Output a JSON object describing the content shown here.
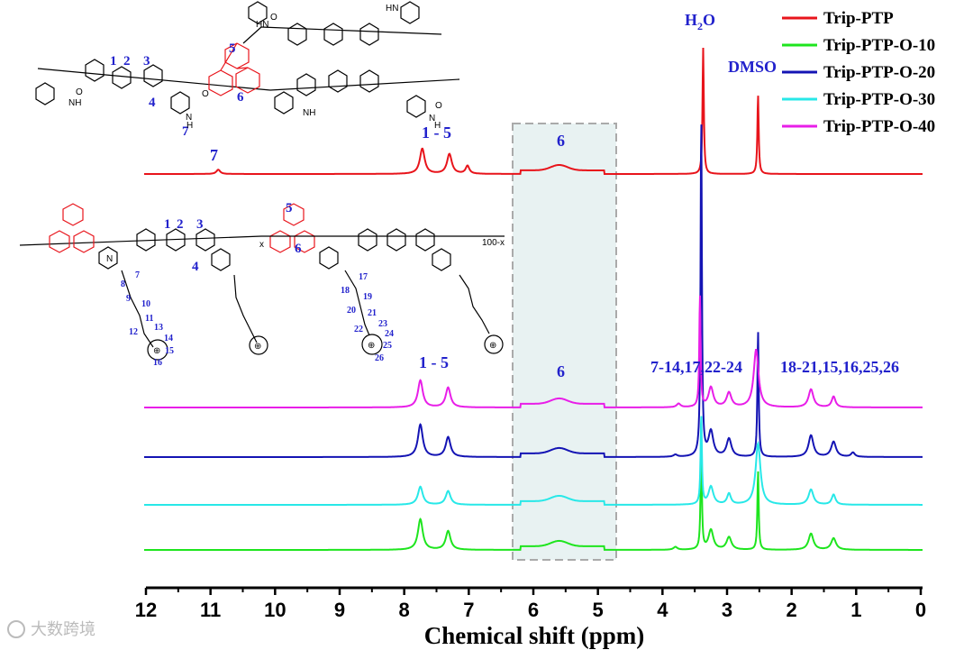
{
  "chart_data": {
    "type": "line",
    "xlabel": "Chemical shift (ppm)",
    "xlim": [
      12,
      0
    ],
    "x_reversed": true,
    "x_ticks": [
      "12",
      "11",
      "10",
      "9",
      "8",
      "7",
      "6",
      "5",
      "4",
      "3",
      "2",
      "1",
      "0"
    ],
    "legend_position": "top-right",
    "grid": false,
    "series": [
      {
        "name": "Trip-PTP",
        "color": "#e8141b",
        "peaks": [
          [
            10.88,
            0.12
          ],
          [
            7.72,
            0.7
          ],
          [
            7.3,
            0.55
          ],
          [
            7.02,
            0.22
          ],
          [
            3.37,
            3.5
          ],
          [
            2.52,
            2.2
          ]
        ]
      },
      {
        "name": "Trip-PTP-O-10",
        "color": "#1ee51e",
        "peaks": [
          [
            7.75,
            0.85
          ],
          [
            7.32,
            0.52
          ],
          [
            3.8,
            0.08
          ],
          [
            3.4,
            2.9
          ],
          [
            3.25,
            0.55
          ],
          [
            2.97,
            0.35
          ],
          [
            2.52,
            2.2
          ],
          [
            1.7,
            0.45
          ],
          [
            1.35,
            0.32
          ]
        ]
      },
      {
        "name": "Trip-PTP-O-20",
        "color": "#1414b4",
        "peaks": [
          [
            7.75,
            0.9
          ],
          [
            7.32,
            0.55
          ],
          [
            3.8,
            0.06
          ],
          [
            3.4,
            9.5
          ],
          [
            3.25,
            0.7
          ],
          [
            2.97,
            0.5
          ],
          [
            2.52,
            3.5
          ],
          [
            1.7,
            0.6
          ],
          [
            1.35,
            0.42
          ],
          [
            1.05,
            0.12
          ]
        ]
      },
      {
        "name": "Trip-PTP-O-30",
        "color": "#28e8e8",
        "peaks": [
          [
            7.75,
            0.5
          ],
          [
            7.32,
            0.38
          ],
          [
            3.4,
            2.5
          ],
          [
            3.25,
            0.5
          ],
          [
            2.97,
            0.3
          ],
          [
            2.52,
            1.7
          ],
          [
            1.7,
            0.42
          ],
          [
            1.35,
            0.28
          ]
        ]
      },
      {
        "name": "Trip-PTP-O-40",
        "color": "#e81ee8",
        "peaks": [
          [
            7.75,
            0.75
          ],
          [
            7.32,
            0.55
          ],
          [
            3.75,
            0.1
          ],
          [
            3.42,
            3.1
          ],
          [
            3.25,
            0.55
          ],
          [
            2.97,
            0.4
          ],
          [
            2.55,
            1.6
          ],
          [
            1.7,
            0.5
          ],
          [
            1.35,
            0.3
          ]
        ]
      }
    ],
    "annotations": [
      "H",
      "2",
      "O",
      "DMSO",
      "1 - 5",
      "7",
      "6",
      "1 - 5",
      "6",
      "7-14,17,22-24",
      "18-21,15,16,25,26"
    ],
    "structure_labels": {
      "top_numbers": [
        "1",
        "2",
        "3",
        "4",
        "5",
        "6",
        "7"
      ],
      "bottom_numbers": [
        "1",
        "2",
        "3",
        "4",
        "5",
        "6",
        "7",
        "8",
        "9",
        "10",
        "11",
        "12",
        "13",
        "14",
        "15",
        "16",
        "17",
        "18",
        "19",
        "20",
        "21",
        "22",
        "23",
        "24",
        "25",
        "26"
      ],
      "atoms": [
        "O",
        "NH",
        "HN",
        "N",
        "H",
        "⊕"
      ],
      "subscripts": [
        "x",
        "100-x"
      ]
    }
  },
  "watermark": "大数跨境"
}
